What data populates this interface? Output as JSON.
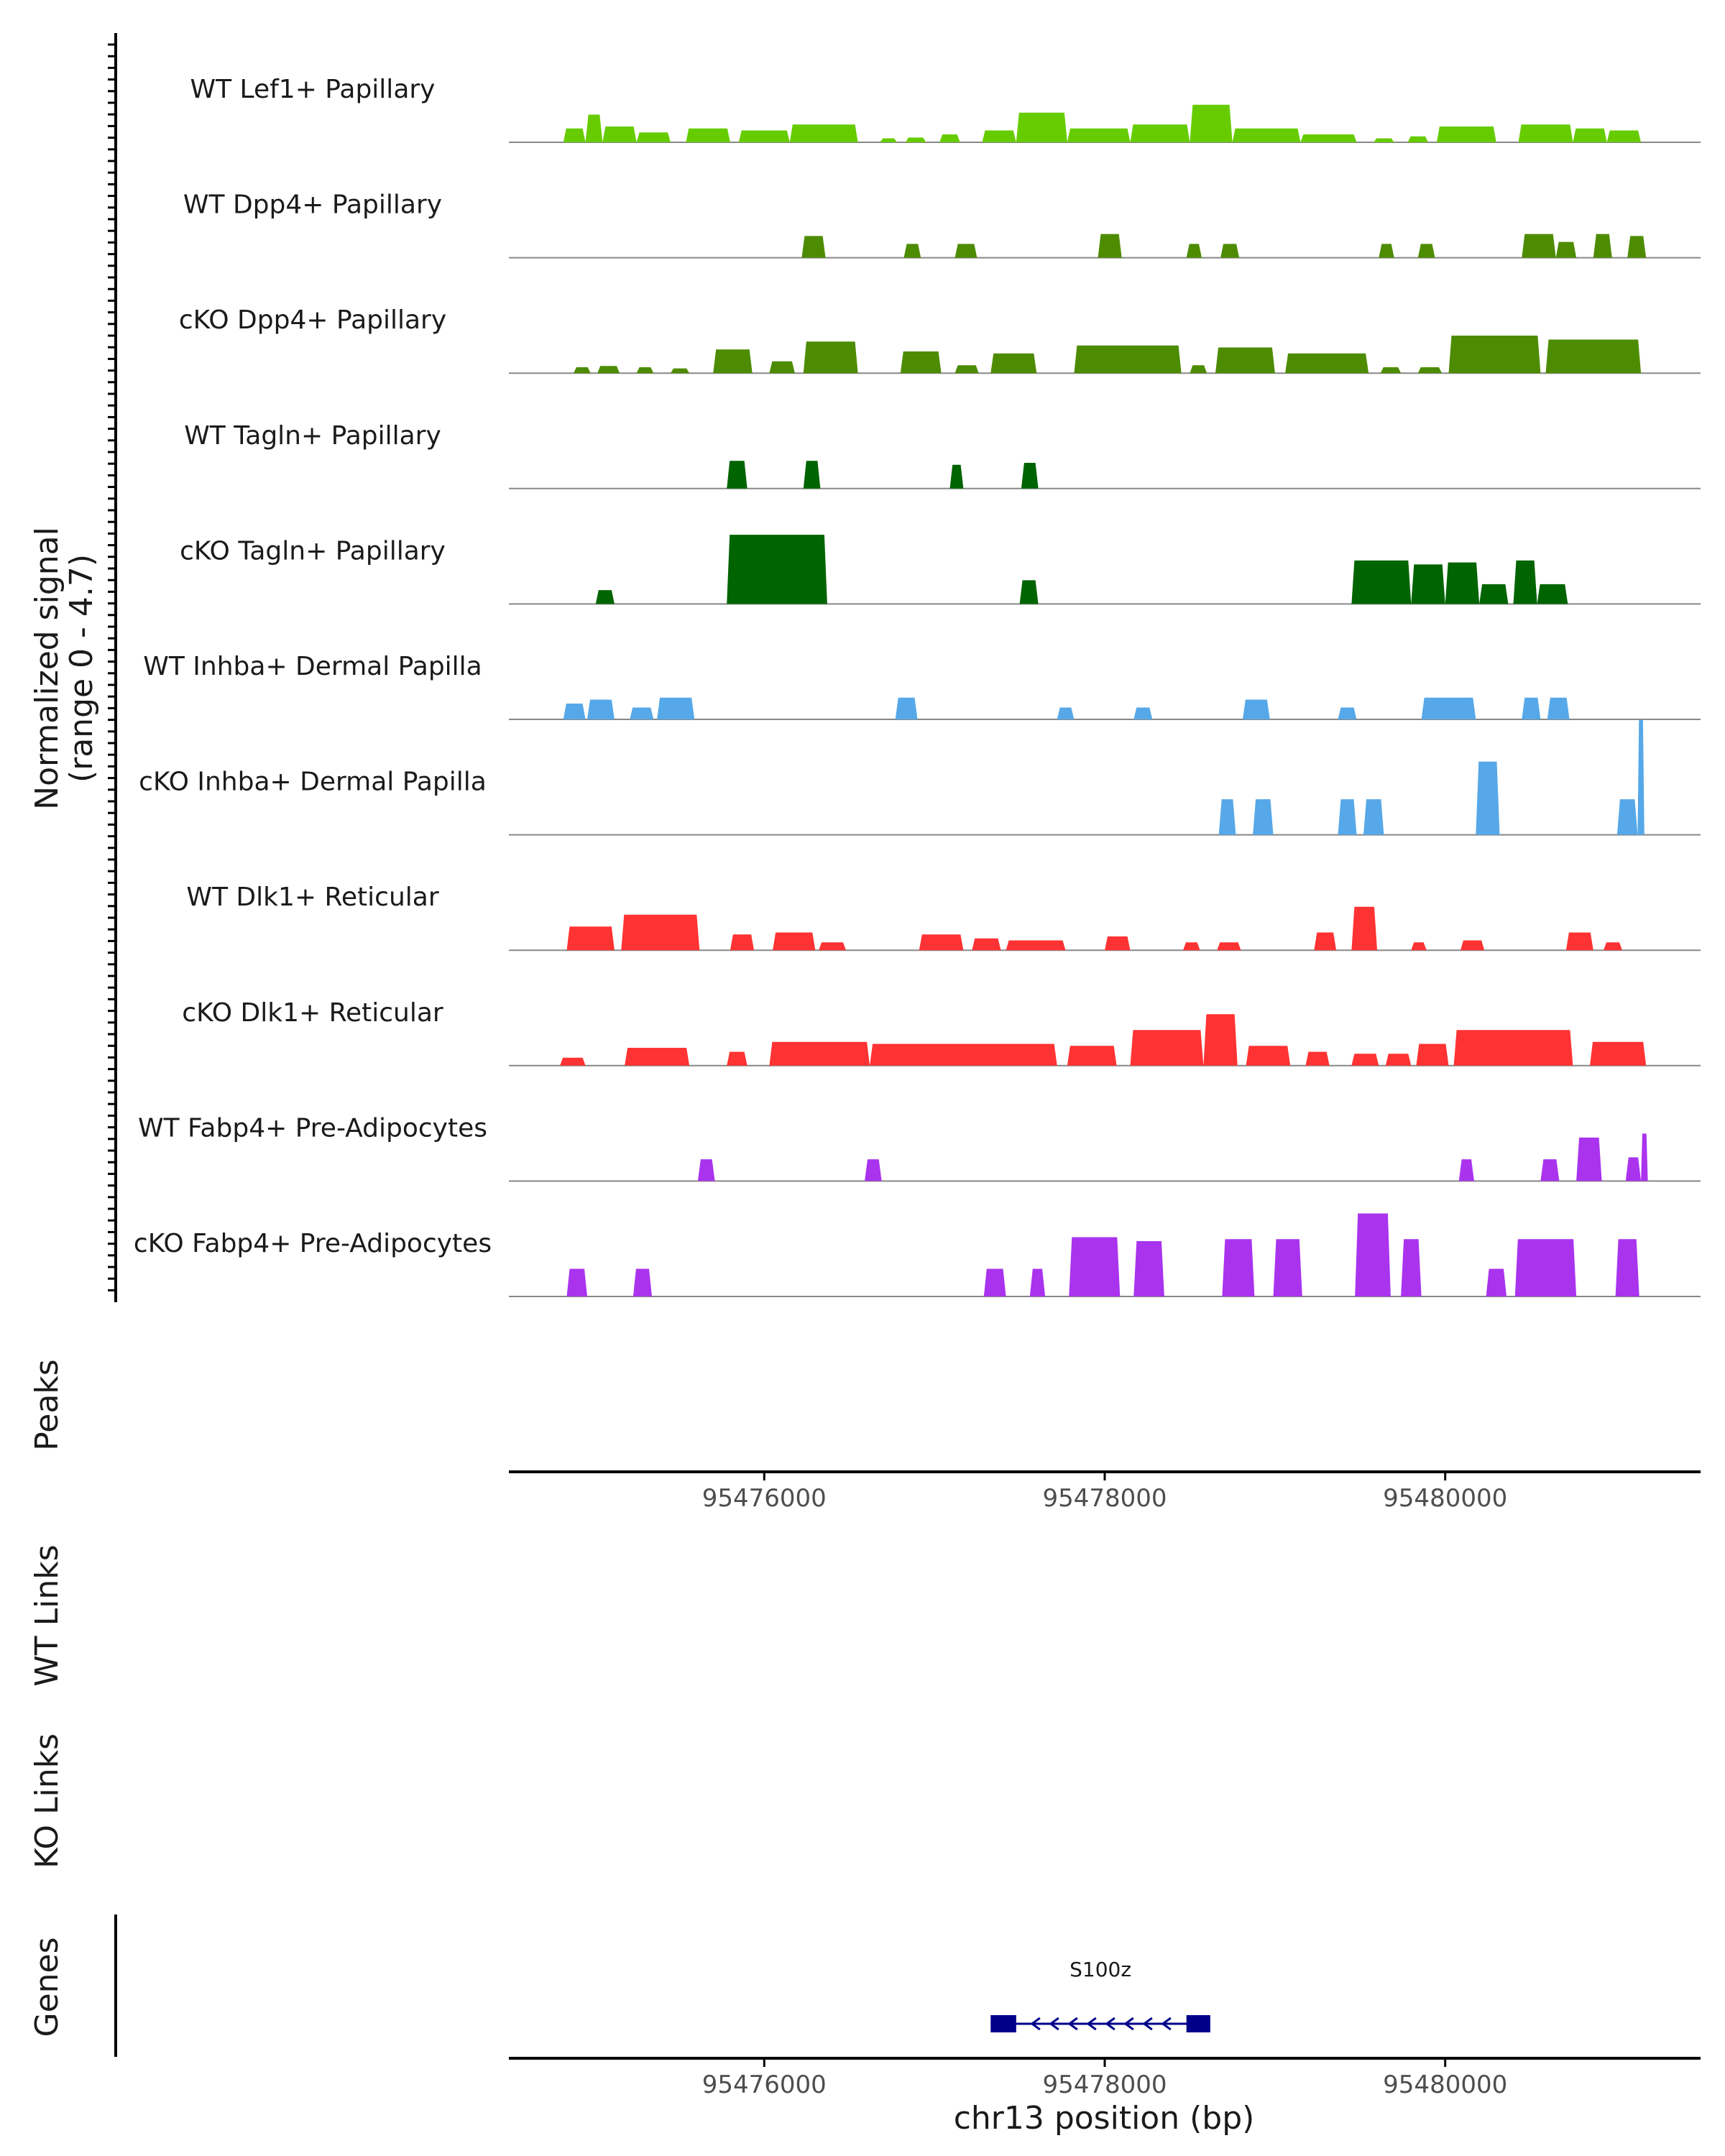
{
  "chart_data": {
    "type": "area",
    "title": "",
    "chromosome": "chr13",
    "region": [
      95474500,
      95481500
    ],
    "xlabel": "chr13 position (bp)",
    "x_ticks": [
      95476000,
      95478000,
      95480000
    ],
    "x_tick_labels": [
      "95476000",
      "95478000",
      "95480000"
    ],
    "signal_ylabel_line1": "Normalized signal",
    "signal_ylabel_line2": "(range 0 - 4.7)",
    "signal_range": [
      0,
      4.7
    ],
    "tracks": [
      {
        "name": "WT Lef1+ Papillary",
        "color": "#66CC00",
        "peaks": [
          [
            95474820,
            95474950,
            0.35
          ],
          [
            95474950,
            95475050,
            0.7
          ],
          [
            95475050,
            95475250,
            0.4
          ],
          [
            95475250,
            95475450,
            0.25
          ],
          [
            95475540,
            95475800,
            0.35
          ],
          [
            95475850,
            95476150,
            0.3
          ],
          [
            95476150,
            95476550,
            0.45
          ],
          [
            95476680,
            95476780,
            0.1
          ],
          [
            95476830,
            95476950,
            0.12
          ],
          [
            95477030,
            95477150,
            0.2
          ],
          [
            95477280,
            95477480,
            0.3
          ],
          [
            95477480,
            95477780,
            0.75
          ],
          [
            95477780,
            95478150,
            0.35
          ],
          [
            95478150,
            95478500,
            0.45
          ],
          [
            95478500,
            95478750,
            0.95
          ],
          [
            95478750,
            95479150,
            0.35
          ],
          [
            95479150,
            95479480,
            0.2
          ],
          [
            95479580,
            95479700,
            0.1
          ],
          [
            95479780,
            95479900,
            0.15
          ],
          [
            95479950,
            95480300,
            0.4
          ],
          [
            95480430,
            95480750,
            0.45
          ],
          [
            95480750,
            95480950,
            0.35
          ],
          [
            95480950,
            95481150,
            0.3
          ]
        ]
      },
      {
        "name": "WT Dpp4+ Papillary",
        "color": "#4D8C00",
        "peaks": [
          [
            95476220,
            95476360,
            0.55
          ],
          [
            95476820,
            95476920,
            0.35
          ],
          [
            95477120,
            95477250,
            0.35
          ],
          [
            95477960,
            95478100,
            0.6
          ],
          [
            95478480,
            95478570,
            0.35
          ],
          [
            95478680,
            95478790,
            0.35
          ],
          [
            95479610,
            95479700,
            0.35
          ],
          [
            95479840,
            95479940,
            0.35
          ],
          [
            95480450,
            95480650,
            0.6
          ],
          [
            95480650,
            95480770,
            0.4
          ],
          [
            95480870,
            95480980,
            0.6
          ],
          [
            95481070,
            95481180,
            0.55
          ]
        ]
      },
      {
        "name": "cKO Dpp4+ Papillary",
        "color": "#4D8C00",
        "peaks": [
          [
            95474880,
            95474980,
            0.15
          ],
          [
            95475020,
            95475150,
            0.18
          ],
          [
            95475250,
            95475350,
            0.15
          ],
          [
            95475450,
            95475560,
            0.12
          ],
          [
            95475700,
            95475930,
            0.6
          ],
          [
            95476030,
            95476180,
            0.3
          ],
          [
            95476230,
            95476550,
            0.8
          ],
          [
            95476800,
            95477040,
            0.55
          ],
          [
            95477120,
            95477260,
            0.2
          ],
          [
            95477330,
            95477600,
            0.5
          ],
          [
            95477820,
            95478450,
            0.7
          ],
          [
            95478500,
            95478600,
            0.2
          ],
          [
            95478650,
            95479000,
            0.65
          ],
          [
            95479060,
            95479550,
            0.5
          ],
          [
            95479620,
            95479740,
            0.15
          ],
          [
            95479840,
            95479980,
            0.15
          ],
          [
            95480020,
            95480560,
            0.95
          ],
          [
            95480590,
            95481150,
            0.85
          ]
        ]
      },
      {
        "name": "WT Tagln+ Papillary",
        "color": "#006400",
        "peaks": [
          [
            95475780,
            95475900,
            0.7
          ],
          [
            95476230,
            95476330,
            0.7
          ],
          [
            95477090,
            95477170,
            0.6
          ],
          [
            95477510,
            95477610,
            0.65
          ]
        ]
      },
      {
        "name": "cKO Tagln+ Papillary",
        "color": "#006400",
        "peaks": [
          [
            95475010,
            95475120,
            0.35
          ],
          [
            95475780,
            95476370,
            1.75
          ],
          [
            95477500,
            95477610,
            0.6
          ],
          [
            95479450,
            95479800,
            1.1
          ],
          [
            95479800,
            95480000,
            1.0
          ],
          [
            95480000,
            95480200,
            1.05
          ],
          [
            95480200,
            95480370,
            0.5
          ],
          [
            95480400,
            95480540,
            1.1
          ],
          [
            95480540,
            95480720,
            0.5
          ]
        ]
      },
      {
        "name": "WT Inhba+ Dermal Papilla",
        "color": "#56A8E8",
        "peaks": [
          [
            95474820,
            95474950,
            0.4
          ],
          [
            95474960,
            95475120,
            0.5
          ],
          [
            95475210,
            95475350,
            0.3
          ],
          [
            95475370,
            95475590,
            0.55
          ],
          [
            95476770,
            95476900,
            0.55
          ],
          [
            95477720,
            95477820,
            0.3
          ],
          [
            95478170,
            95478280,
            0.3
          ],
          [
            95478810,
            95478970,
            0.5
          ],
          [
            95479370,
            95479480,
            0.3
          ],
          [
            95479860,
            95480180,
            0.55
          ],
          [
            95480450,
            95480560,
            0.55
          ],
          [
            95480600,
            95480730,
            0.55
          ]
        ]
      },
      {
        "name": "cKO Inhba+ Dermal Papilla",
        "color": "#56A8E8",
        "peaks": [
          [
            95478670,
            95478770,
            0.9
          ],
          [
            95478870,
            95478990,
            0.9
          ],
          [
            95479370,
            95479480,
            0.9
          ],
          [
            95479520,
            95479640,
            0.9
          ],
          [
            95480180,
            95480320,
            1.85
          ],
          [
            95481010,
            95481130,
            0.9
          ],
          [
            95481130,
            95481170,
            2.9
          ]
        ]
      },
      {
        "name": "WT Dlk1+ Reticular",
        "color": "#FF3333",
        "peaks": [
          [
            95474840,
            95475120,
            0.6
          ],
          [
            95475160,
            95475620,
            0.9
          ],
          [
            95475800,
            95475940,
            0.4
          ],
          [
            95476050,
            95476300,
            0.45
          ],
          [
            95476320,
            95476480,
            0.2
          ],
          [
            95476910,
            95477170,
            0.4
          ],
          [
            95477220,
            95477390,
            0.3
          ],
          [
            95477420,
            95477770,
            0.25
          ],
          [
            95478000,
            95478150,
            0.35
          ],
          [
            95478460,
            95478560,
            0.2
          ],
          [
            95478660,
            95478800,
            0.2
          ],
          [
            95479230,
            95479360,
            0.45
          ],
          [
            95479450,
            95479600,
            1.1
          ],
          [
            95479800,
            95479890,
            0.2
          ],
          [
            95480090,
            95480230,
            0.25
          ],
          [
            95480710,
            95480870,
            0.45
          ],
          [
            95480930,
            95481040,
            0.2
          ]
        ]
      },
      {
        "name": "cKO Dlk1+ Reticular",
        "color": "#FF3333",
        "peaks": [
          [
            95474800,
            95474950,
            0.2
          ],
          [
            95475180,
            95475560,
            0.45
          ],
          [
            95475780,
            95475900,
            0.35
          ],
          [
            95476030,
            95476620,
            0.6
          ],
          [
            95476620,
            95477720,
            0.55
          ],
          [
            95477780,
            95478070,
            0.5
          ],
          [
            95478150,
            95478580,
            0.9
          ],
          [
            95478580,
            95478780,
            1.3
          ],
          [
            95478830,
            95479090,
            0.5
          ],
          [
            95479180,
            95479320,
            0.35
          ],
          [
            95479450,
            95479610,
            0.3
          ],
          [
            95479650,
            95479800,
            0.3
          ],
          [
            95479830,
            95480020,
            0.55
          ],
          [
            95480050,
            95480750,
            0.9
          ],
          [
            95480850,
            95481180,
            0.6
          ]
        ]
      },
      {
        "name": "WT Fabp4+ Pre-Adipocytes",
        "color": "#AA33EE",
        "peaks": [
          [
            95475610,
            95475710,
            0.55
          ],
          [
            95476590,
            95476690,
            0.55
          ],
          [
            95480080,
            95480170,
            0.55
          ],
          [
            95480560,
            95480670,
            0.55
          ],
          [
            95480770,
            95480920,
            1.1
          ],
          [
            95481060,
            95481150,
            0.6
          ],
          [
            95481150,
            95481190,
            1.2
          ]
        ]
      },
      {
        "name": "cKO Fabp4+ Pre-Adipocytes",
        "color": "#AA33EE",
        "peaks": [
          [
            95474840,
            95474960,
            0.7
          ],
          [
            95475230,
            95475340,
            0.7
          ],
          [
            95477290,
            95477420,
            0.7
          ],
          [
            95477560,
            95477650,
            0.7
          ],
          [
            95477790,
            95478090,
            1.5
          ],
          [
            95478170,
            95478350,
            1.4
          ],
          [
            95478690,
            95478880,
            1.45
          ],
          [
            95478990,
            95479160,
            1.45
          ],
          [
            95479470,
            95479680,
            2.1
          ],
          [
            95479740,
            95479860,
            1.45
          ],
          [
            95480240,
            95480360,
            0.7
          ],
          [
            95480410,
            95480770,
            1.45
          ],
          [
            95481000,
            95481140,
            1.45
          ]
        ]
      }
    ],
    "peaks_label": "Peaks",
    "wt_links_label": "WT Links",
    "ko_links_label": "KO Links",
    "genes_label": "Genes",
    "genes": [
      {
        "name": "S100z",
        "start": 95477330,
        "end": 95478620,
        "strand": "-",
        "exons": [
          [
            95477330,
            95477480
          ],
          [
            95478480,
            95478620
          ]
        ]
      }
    ],
    "colors": {
      "axis": "#000000",
      "baseline": "#888888",
      "gene": "#00008B"
    }
  }
}
